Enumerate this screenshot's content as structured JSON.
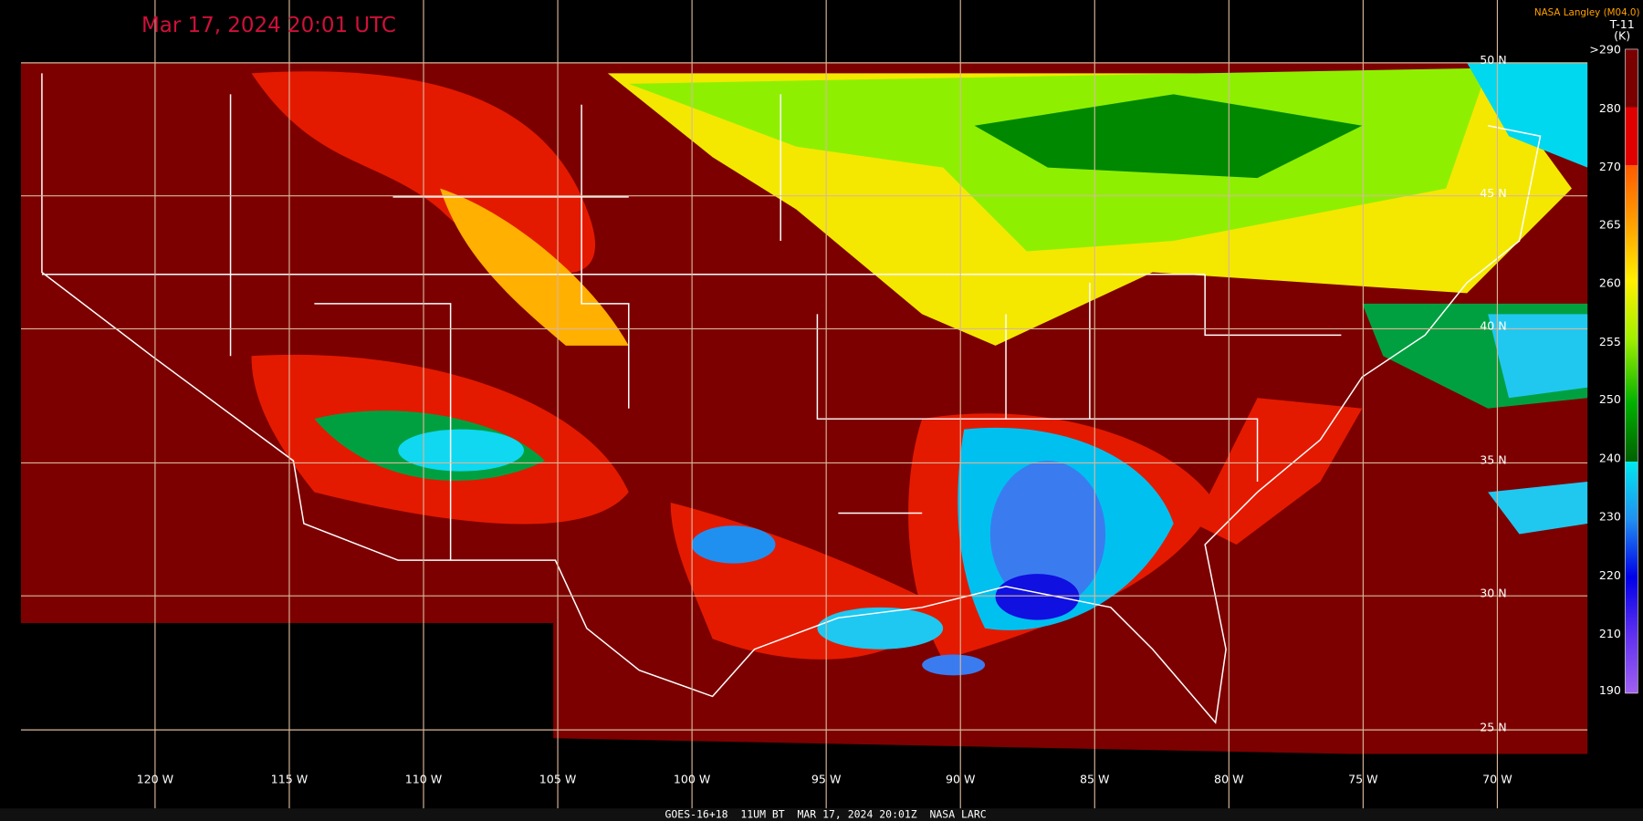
{
  "header": {
    "title": "Mar 17, 2024 20:01 UTC",
    "credit": "NASA Langley (M04.0)",
    "product": "T-11",
    "units": "(K)"
  },
  "colorbar": {
    "labels": [
      ">290",
      "280",
      "270",
      "265",
      "260",
      "255",
      "250",
      "240",
      "230",
      "220",
      "210",
      "190"
    ]
  },
  "latitude_labels": [
    "50 N",
    "45 N",
    "40 N",
    "35 N",
    "30 N",
    "25 N"
  ],
  "longitude_labels": [
    "120 W",
    "115 W",
    "110 W",
    "105 W",
    "100 W",
    "95 W",
    "90 W",
    "85 W",
    "80 W",
    "75 W",
    "70 W"
  ],
  "footer": "GOES-16+18  11UM BT  MAR 17, 2024 20:01Z  NASA LARC"
}
